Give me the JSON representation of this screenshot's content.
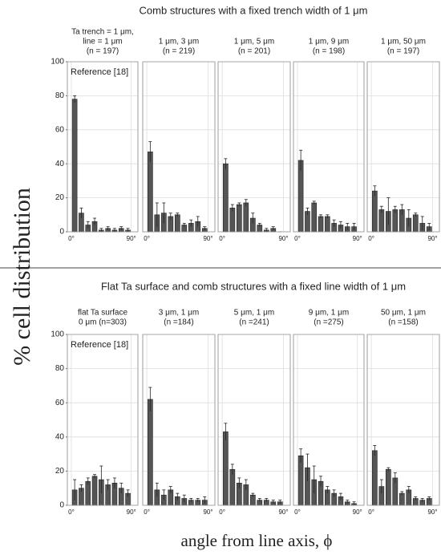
{
  "figure": {
    "row_titles": [
      "Comb structures with a fixed trench width of 1 μm",
      "Flat Ta surface and comb structures with a fixed line width of 1 μm"
    ],
    "ylabel": "% cell distribution",
    "xlabel": "angle from line axis, ϕ"
  },
  "chart_data": [
    {
      "type": "histogram",
      "title": [
        "Ta trench = 1 μm,",
        "line = 1 μm",
        "(n = 197)"
      ],
      "annotation": "Reference [18]",
      "bins": [
        0,
        10,
        20,
        30,
        40,
        50,
        60,
        70,
        80,
        90
      ],
      "values": [
        78,
        11,
        4,
        6,
        1,
        2,
        1,
        2,
        1
      ],
      "errors": [
        2,
        3,
        2,
        2,
        1,
        1,
        1,
        1,
        1
      ],
      "color": "#555555",
      "xlim": [
        -6,
        100
      ],
      "xticks": [
        {
          "value": 0,
          "label": "0°"
        },
        {
          "value": 90,
          "label": "90°"
        }
      ],
      "ylim": [
        0,
        100
      ],
      "yticks": [
        0,
        20,
        40,
        60,
        80,
        100
      ],
      "grid": true
    },
    {
      "type": "histogram",
      "title": [
        "1 μm, 3 μm",
        "(n = 219)"
      ],
      "bins": [
        0,
        10,
        20,
        30,
        40,
        50,
        60,
        70,
        80,
        90
      ],
      "values": [
        47,
        10,
        11,
        9,
        10,
        4,
        5,
        6,
        2
      ],
      "errors": [
        6,
        7,
        6,
        2,
        1,
        1,
        2,
        3,
        1
      ],
      "color": "#555555",
      "xlim": [
        -6,
        100
      ],
      "xticks": [
        {
          "value": 0,
          "label": "0°"
        },
        {
          "value": 90,
          "label": "90°"
        }
      ],
      "ylim": [
        0,
        100
      ],
      "grid": true
    },
    {
      "type": "histogram",
      "title": [
        "1 μm, 5 μm",
        "(n = 201)"
      ],
      "bins": [
        0,
        10,
        20,
        30,
        40,
        50,
        60,
        70,
        80,
        90
      ],
      "values": [
        40,
        14,
        16,
        17,
        8,
        4,
        1,
        2,
        0
      ],
      "errors": [
        3,
        2,
        1,
        2,
        3,
        1,
        1,
        1,
        0
      ],
      "color": "#555555",
      "xlim": [
        -6,
        100
      ],
      "xticks": [
        {
          "value": 0,
          "label": "0°"
        },
        {
          "value": 90,
          "label": "90°"
        }
      ],
      "ylim": [
        0,
        100
      ],
      "grid": true
    },
    {
      "type": "histogram",
      "title": [
        "1 μm, 9 μm",
        "(n = 198)"
      ],
      "bins": [
        0,
        10,
        20,
        30,
        40,
        50,
        60,
        70,
        80,
        90
      ],
      "values": [
        42,
        12,
        17,
        9,
        9,
        5,
        4,
        3,
        3
      ],
      "errors": [
        6,
        2,
        1,
        1,
        1,
        2,
        2,
        2,
        2
      ],
      "color": "#555555",
      "xlim": [
        -6,
        100
      ],
      "xticks": [
        {
          "value": 0,
          "label": "0°"
        },
        {
          "value": 90,
          "label": "90°"
        }
      ],
      "ylim": [
        0,
        100
      ],
      "grid": true
    },
    {
      "type": "histogram",
      "title": [
        "1 μm, 50 μm",
        "(n = 197)"
      ],
      "bins": [
        0,
        10,
        20,
        30,
        40,
        50,
        60,
        70,
        80,
        90
      ],
      "values": [
        24,
        13,
        12,
        13,
        13,
        8,
        10,
        5,
        3
      ],
      "errors": [
        3,
        2,
        8,
        2,
        3,
        5,
        1,
        4,
        2
      ],
      "color": "#555555",
      "xlim": [
        -6,
        100
      ],
      "xticks": [
        {
          "value": 0,
          "label": "0°"
        },
        {
          "value": 90,
          "label": "90°"
        }
      ],
      "ylim": [
        0,
        100
      ],
      "grid": true
    },
    {
      "type": "histogram",
      "title": [
        "flat Ta surface",
        "0 μm  (n=303)"
      ],
      "annotation": "Reference [18]",
      "bins": [
        0,
        10,
        20,
        30,
        40,
        50,
        60,
        70,
        80,
        90
      ],
      "values": [
        9,
        10,
        14,
        17,
        15,
        12,
        13,
        10,
        7
      ],
      "errors": [
        6,
        2,
        2,
        1,
        8,
        3,
        3,
        3,
        2
      ],
      "color": "#555555",
      "xlim": [
        -6,
        100
      ],
      "xticks": [
        {
          "value": 0,
          "label": "0°"
        },
        {
          "value": 90,
          "label": "90°"
        }
      ],
      "ylim": [
        0,
        100
      ],
      "yticks": [
        0,
        20,
        40,
        60,
        80,
        100
      ],
      "grid": true
    },
    {
      "type": "histogram",
      "title": [
        "3 μm, 1 μm",
        "(n =184)"
      ],
      "bins": [
        0,
        10,
        20,
        30,
        40,
        50,
        60,
        70,
        80,
        90
      ],
      "values": [
        62,
        9,
        6,
        9,
        5,
        4,
        3,
        3,
        3
      ],
      "errors": [
        7,
        4,
        3,
        2,
        2,
        2,
        1,
        1,
        2
      ],
      "color": "#555555",
      "xlim": [
        -6,
        100
      ],
      "xticks": [
        {
          "value": 0,
          "label": "0°"
        },
        {
          "value": 90,
          "label": "90°"
        }
      ],
      "ylim": [
        0,
        100
      ],
      "grid": true
    },
    {
      "type": "histogram",
      "title": [
        "5 μm, 1 μm",
        "(n =241)"
      ],
      "bins": [
        0,
        10,
        20,
        30,
        40,
        50,
        60,
        70,
        80,
        90
      ],
      "values": [
        43,
        21,
        13,
        12,
        6,
        3,
        3,
        2,
        2
      ],
      "errors": [
        5,
        3,
        3,
        3,
        1,
        1,
        1,
        1,
        1
      ],
      "color": "#555555",
      "xlim": [
        -6,
        100
      ],
      "xticks": [
        {
          "value": 0,
          "label": "0°"
        },
        {
          "value": 90,
          "label": "90°"
        }
      ],
      "ylim": [
        0,
        100
      ],
      "grid": true
    },
    {
      "type": "histogram",
      "title": [
        "9 μm, 1 μm",
        "(n =275)"
      ],
      "bins": [
        0,
        10,
        20,
        30,
        40,
        50,
        60,
        70,
        80,
        90
      ],
      "values": [
        29,
        22,
        15,
        14,
        9,
        7,
        5,
        2,
        1
      ],
      "errors": [
        4,
        8,
        8,
        3,
        2,
        2,
        2,
        1,
        1
      ],
      "color": "#555555",
      "xlim": [
        -6,
        100
      ],
      "xticks": [
        {
          "value": 0,
          "label": "0°"
        },
        {
          "value": 90,
          "label": "90°"
        }
      ],
      "ylim": [
        0,
        100
      ],
      "grid": true
    },
    {
      "type": "histogram",
      "title": [
        "50 μm, 1 μm",
        "(n =158)"
      ],
      "bins": [
        0,
        10,
        20,
        30,
        40,
        50,
        60,
        70,
        80,
        90
      ],
      "values": [
        32,
        11,
        21,
        16,
        7,
        9,
        4,
        3,
        4
      ],
      "errors": [
        3,
        4,
        1,
        3,
        1,
        2,
        1,
        1,
        1
      ],
      "color": "#555555",
      "xlim": [
        -6,
        100
      ],
      "xticks": [
        {
          "value": 0,
          "label": "0°"
        },
        {
          "value": 90,
          "label": "90°"
        }
      ],
      "ylim": [
        0,
        100
      ],
      "grid": true
    }
  ]
}
